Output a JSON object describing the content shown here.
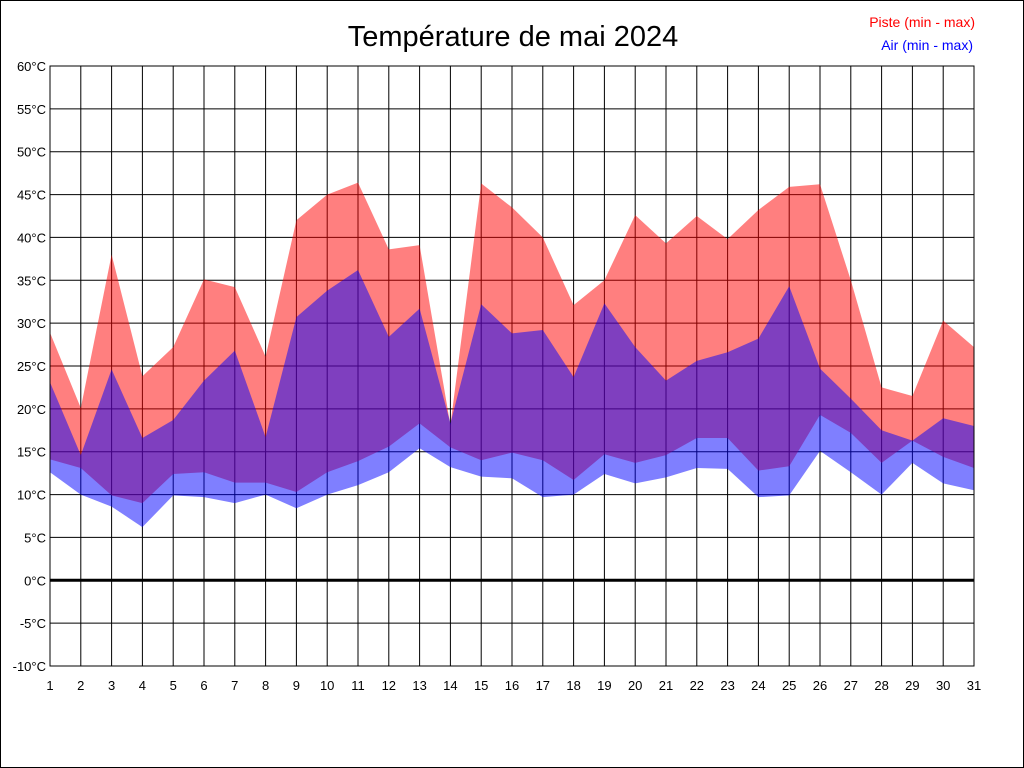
{
  "chart_data": {
    "type": "area",
    "title": "Température de mai 2024",
    "xlabel": "",
    "ylabel": "",
    "x": [
      1,
      2,
      3,
      4,
      5,
      6,
      7,
      8,
      9,
      10,
      11,
      12,
      13,
      14,
      15,
      16,
      17,
      18,
      19,
      20,
      21,
      22,
      23,
      24,
      25,
      26,
      27,
      28,
      29,
      30,
      31
    ],
    "ylim": [
      -10,
      60
    ],
    "yticks": [
      "-10°C",
      "-5°C",
      "0°C",
      "5°C",
      "10°C",
      "15°C",
      "20°C",
      "25°C",
      "30°C",
      "35°C",
      "40°C",
      "45°C",
      "50°C",
      "55°C",
      "60°C"
    ],
    "grid": true,
    "legend_position": "top-right",
    "series": [
      {
        "name": "Piste (min - max)",
        "color": "#ff0000",
        "min": [
          14.1,
          13.1,
          9.9,
          9.0,
          12.4,
          12.6,
          11.4,
          11.4,
          10.3,
          12.6,
          13.9,
          15.6,
          18.3,
          15.5,
          14.0,
          14.9,
          14.0,
          11.7,
          14.7,
          13.7,
          14.6,
          16.6,
          16.6,
          12.8,
          13.3,
          19.3,
          17.2,
          13.7,
          16.3,
          14.4,
          13.1
        ],
        "max": [
          28.9,
          20.1,
          38.0,
          23.8,
          27.2,
          35.1,
          34.2,
          26.1,
          42.0,
          45.0,
          46.4,
          38.6,
          39.1,
          18.1,
          46.3,
          43.5,
          40.0,
          32.1,
          35.0,
          42.6,
          39.3,
          42.5,
          39.8,
          43.2,
          45.9,
          46.2,
          35.0,
          22.5,
          21.5,
          30.3,
          27.2
        ]
      },
      {
        "name": "Air (min - max)",
        "color": "#0000ff",
        "min": [
          12.6,
          10.0,
          8.6,
          6.2,
          9.9,
          9.7,
          9.0,
          10.0,
          8.4,
          10.0,
          11.1,
          12.6,
          15.4,
          13.2,
          12.1,
          11.9,
          9.7,
          10.0,
          12.4,
          11.3,
          12.0,
          13.1,
          13.0,
          9.7,
          9.9,
          15.1,
          12.6,
          10.0,
          13.7,
          11.3,
          10.5
        ],
        "max": [
          23.1,
          14.6,
          24.6,
          16.6,
          18.7,
          23.3,
          26.8,
          16.7,
          30.7,
          33.8,
          36.2,
          28.4,
          31.7,
          18.3,
          32.2,
          28.8,
          29.2,
          23.7,
          32.3,
          27.2,
          23.3,
          25.6,
          26.6,
          28.2,
          34.3,
          24.7,
          21.2,
          17.5,
          16.3,
          18.9,
          18.0
        ]
      }
    ]
  }
}
